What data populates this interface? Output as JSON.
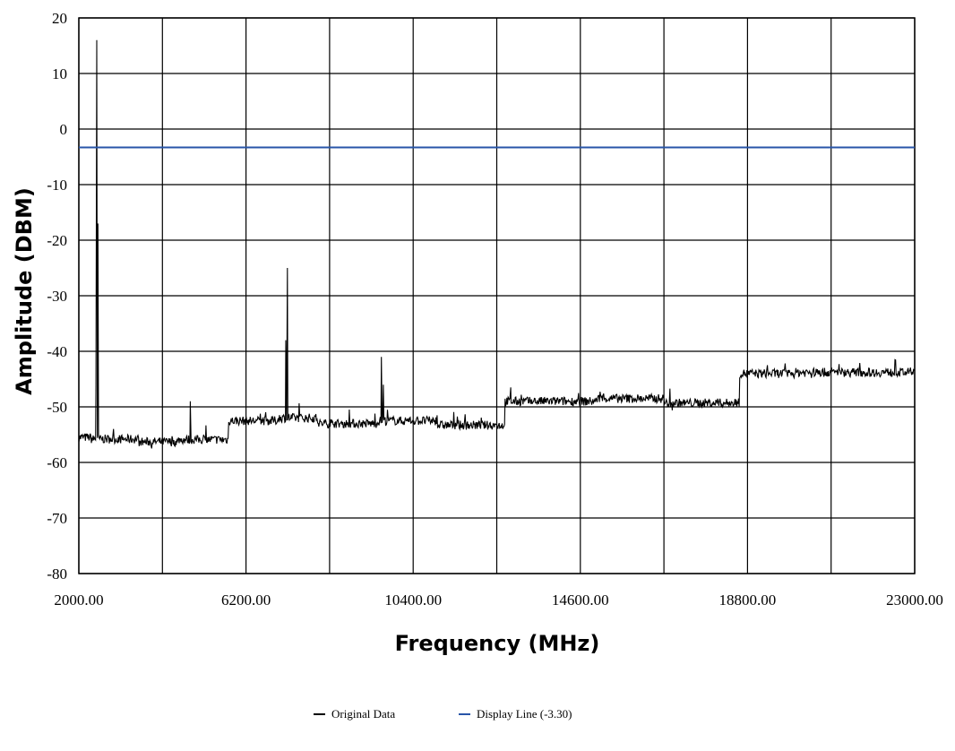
{
  "chart_data": {
    "type": "line",
    "title": "",
    "xlabel": "Frequency (MHz)",
    "ylabel": "Amplitude (DBM)",
    "xlim": [
      2000,
      23000
    ],
    "ylim": [
      -80,
      20
    ],
    "grid": true,
    "legend_placement": "bottom-center",
    "x_ticks": [
      2000,
      4100,
      6200,
      8300,
      10400,
      12500,
      14600,
      16700,
      18800,
      20900,
      23000
    ],
    "x_tick_labels": [
      "2000.00",
      "",
      "6200.00",
      "",
      "10400.00",
      "",
      "14600.00",
      "",
      "18800.00",
      "",
      "23000.00"
    ],
    "y_ticks": [
      20,
      10,
      0,
      -10,
      -20,
      -30,
      -40,
      -50,
      -60,
      -70,
      -80
    ],
    "y_tick_labels": [
      "20",
      "10",
      "0",
      "-10",
      "-20",
      "-30",
      "-40",
      "-50",
      "-60",
      "-70",
      "-80"
    ],
    "series": [
      {
        "name": "Original Data",
        "color": "#000000",
        "style": "noisy-trace",
        "baseline_segments": [
          {
            "x_start": 2000,
            "x_end": 2300,
            "y": -55.5
          },
          {
            "x_start": 2300,
            "x_end": 3500,
            "y": -55.8
          },
          {
            "x_start": 3500,
            "x_end": 4500,
            "y": -56.3
          },
          {
            "x_start": 4500,
            "x_end": 5750,
            "y": -55.9
          },
          {
            "x_start": 5750,
            "x_end": 7000,
            "y": -52.5
          },
          {
            "x_start": 7000,
            "x_end": 8000,
            "y": -52.0
          },
          {
            "x_start": 8000,
            "x_end": 9500,
            "y": -53.0
          },
          {
            "x_start": 9500,
            "x_end": 11000,
            "y": -52.5
          },
          {
            "x_start": 11000,
            "x_end": 12700,
            "y": -53.3
          },
          {
            "x_start": 12700,
            "x_end": 15000,
            "y": -49.0
          },
          {
            "x_start": 15000,
            "x_end": 16700,
            "y": -48.5
          },
          {
            "x_start": 16700,
            "x_end": 18600,
            "y": -49.3
          },
          {
            "x_start": 18600,
            "x_end": 20000,
            "y": -44.0
          },
          {
            "x_start": 20000,
            "x_end": 23000,
            "y": -43.8
          }
        ],
        "peaks": [
          {
            "x": 2430,
            "y": -46
          },
          {
            "x": 2450,
            "y": 16
          },
          {
            "x": 2480,
            "y": -17
          },
          {
            "x": 4800,
            "y": -49
          },
          {
            "x": 7200,
            "y": -38
          },
          {
            "x": 7240,
            "y": -25
          },
          {
            "x": 9600,
            "y": -41
          },
          {
            "x": 9650,
            "y": -46
          },
          {
            "x": 12850,
            "y": -46.5
          },
          {
            "x": 19300,
            "y": -42.5
          },
          {
            "x": 21100,
            "y": -42.3
          }
        ]
      },
      {
        "name": "Display Line (-3.30)",
        "color": "#2855a8",
        "style": "horizontal",
        "y": -3.3
      }
    ]
  }
}
